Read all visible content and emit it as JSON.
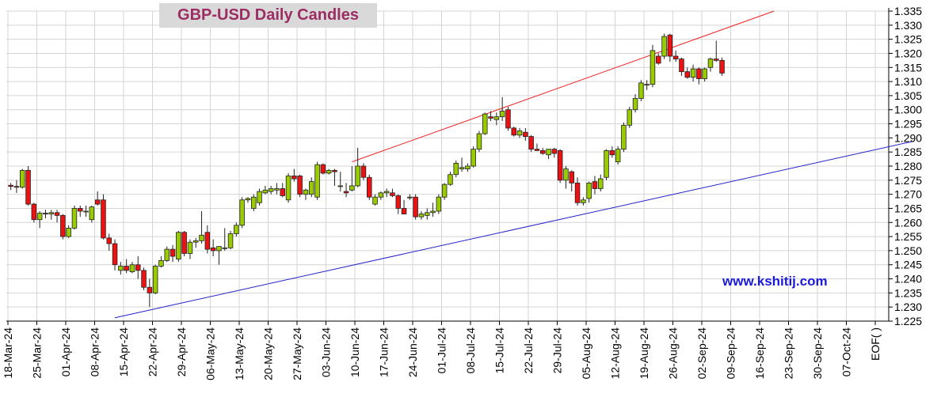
{
  "chart_data": {
    "type": "candlestick",
    "title": "GBP-USD Daily Candles",
    "watermark": "www.kshitij.com",
    "ylim": [
      1.225,
      1.335
    ],
    "y_ticks": [
      "1.225",
      "1.230",
      "1.235",
      "1.240",
      "1.245",
      "1.250",
      "1.255",
      "1.260",
      "1.265",
      "1.270",
      "1.275",
      "1.280",
      "1.285",
      "1.290",
      "1.295",
      "1.300",
      "1.305",
      "1.310",
      "1.315",
      "1.320",
      "1.325",
      "1.330",
      "1.335"
    ],
    "x_ticks": [
      "18-Mar-24",
      "25-Mar-24",
      "01-Apr-24",
      "08-Apr-24",
      "15-Apr-24",
      "22-Apr-24",
      "29-Apr-24",
      "06-May-24",
      "13-May-24",
      "20-May-24",
      "27-May-24",
      "03-Jun-24",
      "10-Jun-24",
      "17-Jun-24",
      "24-Jun-24",
      "01-Jul-24",
      "08-Jul-24",
      "15-Jul-24",
      "22-Jul-24",
      "29-Jul-24",
      "05-Aug-24",
      "12-Aug-24",
      "19-Aug-24",
      "26-Aug-24",
      "02-Sep-24",
      "09-Sep-24",
      "16-Sep-24",
      "23-Sep-24",
      "30-Sep-24",
      "07-Oct-24",
      "EOF( )"
    ],
    "colors": {
      "up": "#99cc00",
      "down": "#ee1111",
      "upper_trendline": "#ee2222",
      "lower_trendline": "#2222cc",
      "grid": "#d4d4d4",
      "title": "#9b2d63",
      "title_bg": "#d9d9d9",
      "watermark": "#1a1ad8"
    },
    "grid": true,
    "candles": [
      {
        "o": 1.2732,
        "h": 1.274,
        "l": 1.2715,
        "c": 1.2728
      },
      {
        "o": 1.2728,
        "h": 1.275,
        "l": 1.2705,
        "c": 1.2725
      },
      {
        "o": 1.2725,
        "h": 1.279,
        "l": 1.272,
        "c": 1.2785
      },
      {
        "o": 1.2785,
        "h": 1.28,
        "l": 1.266,
        "c": 1.2665
      },
      {
        "o": 1.2665,
        "h": 1.267,
        "l": 1.26,
        "c": 1.261
      },
      {
        "o": 1.261,
        "h": 1.264,
        "l": 1.258,
        "c": 1.2633
      },
      {
        "o": 1.2633,
        "h": 1.2645,
        "l": 1.2615,
        "c": 1.263
      },
      {
        "o": 1.263,
        "h": 1.2645,
        "l": 1.261,
        "c": 1.2635
      },
      {
        "o": 1.2635,
        "h": 1.2645,
        "l": 1.26,
        "c": 1.2625
      },
      {
        "o": 1.2625,
        "h": 1.263,
        "l": 1.254,
        "c": 1.255
      },
      {
        "o": 1.255,
        "h": 1.259,
        "l": 1.2545,
        "c": 1.258
      },
      {
        "o": 1.258,
        "h": 1.266,
        "l": 1.2575,
        "c": 1.265
      },
      {
        "o": 1.265,
        "h": 1.266,
        "l": 1.262,
        "c": 1.264
      },
      {
        "o": 1.264,
        "h": 1.266,
        "l": 1.262,
        "c": 1.264
      },
      {
        "o": 1.261,
        "h": 1.266,
        "l": 1.26,
        "c": 1.2655
      },
      {
        "o": 1.268,
        "h": 1.271,
        "l": 1.266,
        "c": 1.2665
      },
      {
        "o": 1.268,
        "h": 1.27,
        "l": 1.254,
        "c": 1.2545
      },
      {
        "o": 1.2545,
        "h": 1.256,
        "l": 1.25,
        "c": 1.2525
      },
      {
        "o": 1.2525,
        "h": 1.254,
        "l": 1.243,
        "c": 1.245
      },
      {
        "o": 1.243,
        "h": 1.246,
        "l": 1.2415,
        "c": 1.2445
      },
      {
        "o": 1.2445,
        "h": 1.247,
        "l": 1.242,
        "c": 1.243
      },
      {
        "o": 1.2425,
        "h": 1.246,
        "l": 1.242,
        "c": 1.245
      },
      {
        "o": 1.245,
        "h": 1.248,
        "l": 1.24,
        "c": 1.243
      },
      {
        "o": 1.243,
        "h": 1.244,
        "l": 1.236,
        "c": 1.237
      },
      {
        "o": 1.237,
        "h": 1.24,
        "l": 1.23,
        "c": 1.235
      },
      {
        "o": 1.235,
        "h": 1.245,
        "l": 1.2345,
        "c": 1.2445
      },
      {
        "o": 1.2445,
        "h": 1.248,
        "l": 1.244,
        "c": 1.2465
      },
      {
        "o": 1.2465,
        "h": 1.2515,
        "l": 1.246,
        "c": 1.2505
      },
      {
        "o": 1.2505,
        "h": 1.252,
        "l": 1.246,
        "c": 1.248
      },
      {
        "o": 1.247,
        "h": 1.257,
        "l": 1.246,
        "c": 1.2565
      },
      {
        "o": 1.2565,
        "h": 1.257,
        "l": 1.248,
        "c": 1.249
      },
      {
        "o": 1.249,
        "h": 1.254,
        "l": 1.247,
        "c": 1.253
      },
      {
        "o": 1.253,
        "h": 1.2545,
        "l": 1.251,
        "c": 1.2535
      },
      {
        "o": 1.2535,
        "h": 1.264,
        "l": 1.2525,
        "c": 1.2555
      },
      {
        "o": 1.2565,
        "h": 1.259,
        "l": 1.249,
        "c": 1.2505
      },
      {
        "o": 1.251,
        "h": 1.254,
        "l": 1.248,
        "c": 1.25
      },
      {
        "o": 1.25,
        "h": 1.2515,
        "l": 1.245,
        "c": 1.2515
      },
      {
        "o": 1.251,
        "h": 1.258,
        "l": 1.25,
        "c": 1.251
      },
      {
        "o": 1.251,
        "h": 1.257,
        "l": 1.2505,
        "c": 1.256
      },
      {
        "o": 1.256,
        "h": 1.26,
        "l": 1.255,
        "c": 1.259
      },
      {
        "o": 1.259,
        "h": 1.269,
        "l": 1.258,
        "c": 1.268
      },
      {
        "o": 1.268,
        "h": 1.269,
        "l": 1.267,
        "c": 1.2685
      },
      {
        "o": 1.265,
        "h": 1.27,
        "l": 1.264,
        "c": 1.269
      },
      {
        "o": 1.267,
        "h": 1.272,
        "l": 1.266,
        "c": 1.271
      },
      {
        "o": 1.2705,
        "h": 1.273,
        "l": 1.27,
        "c": 1.2715
      },
      {
        "o": 1.271,
        "h": 1.273,
        "l": 1.27,
        "c": 1.272
      },
      {
        "o": 1.2715,
        "h": 1.274,
        "l": 1.27,
        "c": 1.272
      },
      {
        "o": 1.272,
        "h": 1.274,
        "l": 1.269,
        "c": 1.2695
      },
      {
        "o": 1.268,
        "h": 1.2775,
        "l": 1.267,
        "c": 1.2765
      },
      {
        "o": 1.2765,
        "h": 1.279,
        "l": 1.2745,
        "c": 1.2755
      },
      {
        "o": 1.2765,
        "h": 1.277,
        "l": 1.269,
        "c": 1.27
      },
      {
        "o": 1.27,
        "h": 1.272,
        "l": 1.268,
        "c": 1.2715
      },
      {
        "o": 1.27,
        "h": 1.276,
        "l": 1.269,
        "c": 1.2745
      },
      {
        "o": 1.269,
        "h": 1.2815,
        "l": 1.268,
        "c": 1.2805
      },
      {
        "o": 1.2805,
        "h": 1.281,
        "l": 1.277,
        "c": 1.2775
      },
      {
        "o": 1.2775,
        "h": 1.279,
        "l": 1.277,
        "c": 1.2785
      },
      {
        "o": 1.2785,
        "h": 1.279,
        "l": 1.273,
        "c": 1.278
      },
      {
        "o": 1.273,
        "h": 1.278,
        "l": 1.271,
        "c": 1.273
      },
      {
        "o": 1.271,
        "h": 1.274,
        "l": 1.269,
        "c": 1.2705
      },
      {
        "o": 1.2715,
        "h": 1.28,
        "l": 1.271,
        "c": 1.273
      },
      {
        "o": 1.273,
        "h": 1.2865,
        "l": 1.2725,
        "c": 1.28
      },
      {
        "o": 1.28,
        "h": 1.281,
        "l": 1.275,
        "c": 1.276
      },
      {
        "o": 1.276,
        "h": 1.277,
        "l": 1.268,
        "c": 1.269
      },
      {
        "o": 1.2665,
        "h": 1.27,
        "l": 1.266,
        "c": 1.269
      },
      {
        "o": 1.269,
        "h": 1.271,
        "l": 1.268,
        "c": 1.2705
      },
      {
        "o": 1.2705,
        "h": 1.272,
        "l": 1.269,
        "c": 1.271
      },
      {
        "o": 1.2705,
        "h": 1.272,
        "l": 1.269,
        "c": 1.2695
      },
      {
        "o": 1.2695,
        "h": 1.27,
        "l": 1.263,
        "c": 1.265
      },
      {
        "o": 1.265,
        "h": 1.268,
        "l": 1.263,
        "c": 1.263
      },
      {
        "o": 1.269,
        "h": 1.27,
        "l": 1.268,
        "c": 1.269
      },
      {
        "o": 1.269,
        "h": 1.27,
        "l": 1.261,
        "c": 1.262
      },
      {
        "o": 1.262,
        "h": 1.264,
        "l": 1.261,
        "c": 1.263
      },
      {
        "o": 1.2625,
        "h": 1.265,
        "l": 1.261,
        "c": 1.2635
      },
      {
        "o": 1.2635,
        "h": 1.267,
        "l": 1.262,
        "c": 1.264
      },
      {
        "o": 1.264,
        "h": 1.27,
        "l": 1.263,
        "c": 1.269
      },
      {
        "o": 1.269,
        "h": 1.274,
        "l": 1.268,
        "c": 1.2735
      },
      {
        "o": 1.2735,
        "h": 1.278,
        "l": 1.273,
        "c": 1.277
      },
      {
        "o": 1.277,
        "h": 1.282,
        "l": 1.276,
        "c": 1.281
      },
      {
        "o": 1.279,
        "h": 1.283,
        "l": 1.278,
        "c": 1.2795
      },
      {
        "o": 1.279,
        "h": 1.281,
        "l": 1.278,
        "c": 1.28
      },
      {
        "o": 1.28,
        "h": 1.287,
        "l": 1.2795,
        "c": 1.286
      },
      {
        "o": 1.286,
        "h": 1.2925,
        "l": 1.285,
        "c": 1.2915
      },
      {
        "o": 1.2915,
        "h": 1.299,
        "l": 1.291,
        "c": 1.2985
      },
      {
        "o": 1.2975,
        "h": 1.2995,
        "l": 1.296,
        "c": 1.297
      },
      {
        "o": 1.2965,
        "h": 1.299,
        "l": 1.2945,
        "c": 1.2975
      },
      {
        "o": 1.2975,
        "h": 1.3045,
        "l": 1.296,
        "c": 1.2995
      },
      {
        "o": 1.3,
        "h": 1.301,
        "l": 1.2925,
        "c": 1.2935
      },
      {
        "o": 1.2935,
        "h": 1.294,
        "l": 1.2905,
        "c": 1.291
      },
      {
        "o": 1.291,
        "h": 1.2935,
        "l": 1.29,
        "c": 1.2925
      },
      {
        "o": 1.292,
        "h": 1.2935,
        "l": 1.289,
        "c": 1.2905
      },
      {
        "o": 1.2905,
        "h": 1.291,
        "l": 1.285,
        "c": 1.286
      },
      {
        "o": 1.286,
        "h": 1.288,
        "l": 1.2855,
        "c": 1.2855
      },
      {
        "o": 1.2855,
        "h": 1.2865,
        "l": 1.284,
        "c": 1.2845
      },
      {
        "o": 1.284,
        "h": 1.286,
        "l": 1.2825,
        "c": 1.286
      },
      {
        "o": 1.286,
        "h": 1.2865,
        "l": 1.283,
        "c": 1.2845
      },
      {
        "o": 1.2855,
        "h": 1.286,
        "l": 1.274,
        "c": 1.275
      },
      {
        "o": 1.275,
        "h": 1.28,
        "l": 1.272,
        "c": 1.279
      },
      {
        "o": 1.278,
        "h": 1.2785,
        "l": 1.271,
        "c": 1.274
      },
      {
        "o": 1.274,
        "h": 1.276,
        "l": 1.266,
        "c": 1.267
      },
      {
        "o": 1.267,
        "h": 1.269,
        "l": 1.266,
        "c": 1.268
      },
      {
        "o": 1.2685,
        "h": 1.2745,
        "l": 1.267,
        "c": 1.274
      },
      {
        "o": 1.2745,
        "h": 1.2765,
        "l": 1.27,
        "c": 1.272
      },
      {
        "o": 1.272,
        "h": 1.277,
        "l": 1.271,
        "c": 1.2755
      },
      {
        "o": 1.276,
        "h": 1.286,
        "l": 1.275,
        "c": 1.2855
      },
      {
        "o": 1.2855,
        "h": 1.287,
        "l": 1.283,
        "c": 1.284
      },
      {
        "o": 1.2815,
        "h": 1.287,
        "l": 1.2805,
        "c": 1.286
      },
      {
        "o": 1.286,
        "h": 1.2955,
        "l": 1.285,
        "c": 1.2945
      },
      {
        "o": 1.2945,
        "h": 1.301,
        "l": 1.2935,
        "c": 1.3
      },
      {
        "o": 1.3,
        "h": 1.3055,
        "l": 1.299,
        "c": 1.304
      },
      {
        "o": 1.304,
        "h": 1.3105,
        "l": 1.303,
        "c": 1.3095
      },
      {
        "o": 1.309,
        "h": 1.3105,
        "l": 1.307,
        "c": 1.309
      },
      {
        "o": 1.309,
        "h": 1.323,
        "l": 1.308,
        "c": 1.321
      },
      {
        "o": 1.319,
        "h": 1.32,
        "l": 1.316,
        "c": 1.3165
      },
      {
        "o": 1.319,
        "h": 1.327,
        "l": 1.318,
        "c": 1.326
      },
      {
        "o": 1.3265,
        "h": 1.327,
        "l": 1.317,
        "c": 1.319
      },
      {
        "o": 1.319,
        "h": 1.321,
        "l": 1.317,
        "c": 1.318
      },
      {
        "o": 1.318,
        "h": 1.3185,
        "l": 1.312,
        "c": 1.3135
      },
      {
        "o": 1.3135,
        "h": 1.315,
        "l": 1.311,
        "c": 1.3115
      },
      {
        "o": 1.3115,
        "h": 1.316,
        "l": 1.31,
        "c": 1.3145
      },
      {
        "o": 1.3145,
        "h": 1.315,
        "l": 1.309,
        "c": 1.311
      },
      {
        "o": 1.311,
        "h": 1.315,
        "l": 1.31,
        "c": 1.3145
      },
      {
        "o": 1.315,
        "h": 1.3185,
        "l": 1.3135,
        "c": 1.318
      },
      {
        "o": 1.318,
        "h": 1.3245,
        "l": 1.317,
        "c": 1.3175
      },
      {
        "o": 1.3175,
        "h": 1.3185,
        "l": 1.312,
        "c": 1.313
      }
    ],
    "trendlines": [
      {
        "name": "upper",
        "from": {
          "x": 59.5,
          "y": 1.2815
        },
        "to": {
          "x": 132.5,
          "y": 1.335
        }
      },
      {
        "name": "lower",
        "from": {
          "x": 18.5,
          "y": 1.2262
        },
        "to": {
          "x": 156.6,
          "y": 1.2888
        }
      }
    ]
  }
}
